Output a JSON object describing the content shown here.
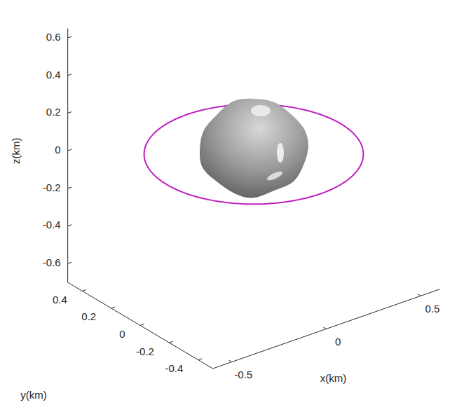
{
  "chart_data": {
    "type": "surface3d",
    "xlabel": "x(km)",
    "ylabel": "y(km)",
    "zlabel": "z(km)",
    "xlim": [
      -0.6,
      0.6
    ],
    "ylim": [
      -0.5,
      0.5
    ],
    "zlim": [
      -0.7,
      0.65
    ],
    "xticks": [
      -0.5,
      0,
      0.5
    ],
    "yticks": [
      -0.4,
      -0.2,
      0,
      0.2,
      0.4
    ],
    "zticks": [
      -0.6,
      -0.4,
      -0.2,
      0,
      0.2,
      0.4,
      0.6
    ],
    "orbit": {
      "radius": 0.46,
      "z": 0,
      "color": "#c020c0"
    }
  }
}
